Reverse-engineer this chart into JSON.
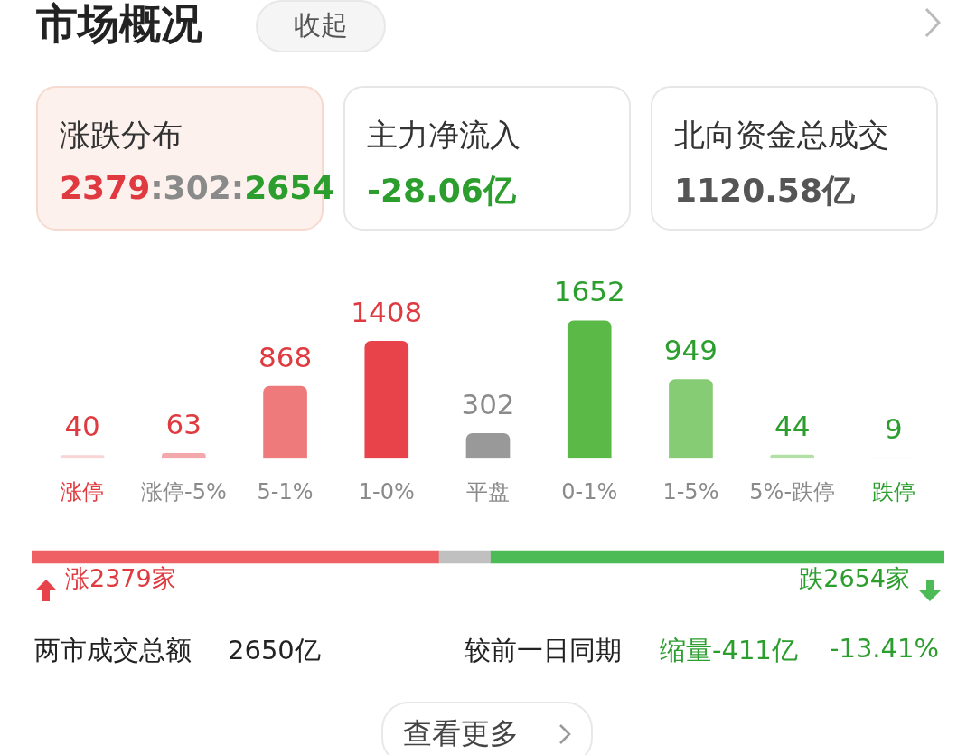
{
  "chart_data": [
    {
      "type": "other",
      "title": "市场概况",
      "annotations": [
        "收起",
        "涨跌分布",
        "2379:302:2654",
        "主力净流入",
        "-28.06亿",
        "北向资金总成交",
        "1120.58亿"
      ]
    },
    {
      "type": "bar",
      "categories": [
        "涨停",
        "涨停-5%",
        "5-1%",
        "1-0%",
        "平盘",
        "0-1%",
        "1-5%",
        "5%-跌停",
        "跌停"
      ],
      "values": [
        40,
        63,
        868,
        1408,
        302,
        1652,
        949,
        44,
        9
      ],
      "colors": [
        "#f9d4d4",
        "#f3a9ab",
        "#ee7a7c",
        "#e8434a",
        "#999999",
        "#5bb947",
        "#85cc74",
        "#b3e0a6",
        "#d8eed2"
      ],
      "data_labels": true
    },
    {
      "type": "bar",
      "orientation": "horizontal",
      "stacked": true,
      "categories": [
        null
      ],
      "series": [
        {
          "color": "#ef6064",
          "values": [
            2379
          ],
          "value_labels": [
            "涨2379家"
          ]
        },
        {
          "color": "#c0c0c0",
          "values": [
            302
          ],
          "value_labels": [
            null
          ]
        },
        {
          "color": "#4cba55",
          "values": [
            2654
          ],
          "value_labels": [
            "跌2654家"
          ]
        }
      ],
      "annotations": [
        "两市成交总额",
        "2650亿",
        "较前一日同期",
        "缩量-411亿",
        "-13.41%",
        "查看更多"
      ]
    }
  ]
}
